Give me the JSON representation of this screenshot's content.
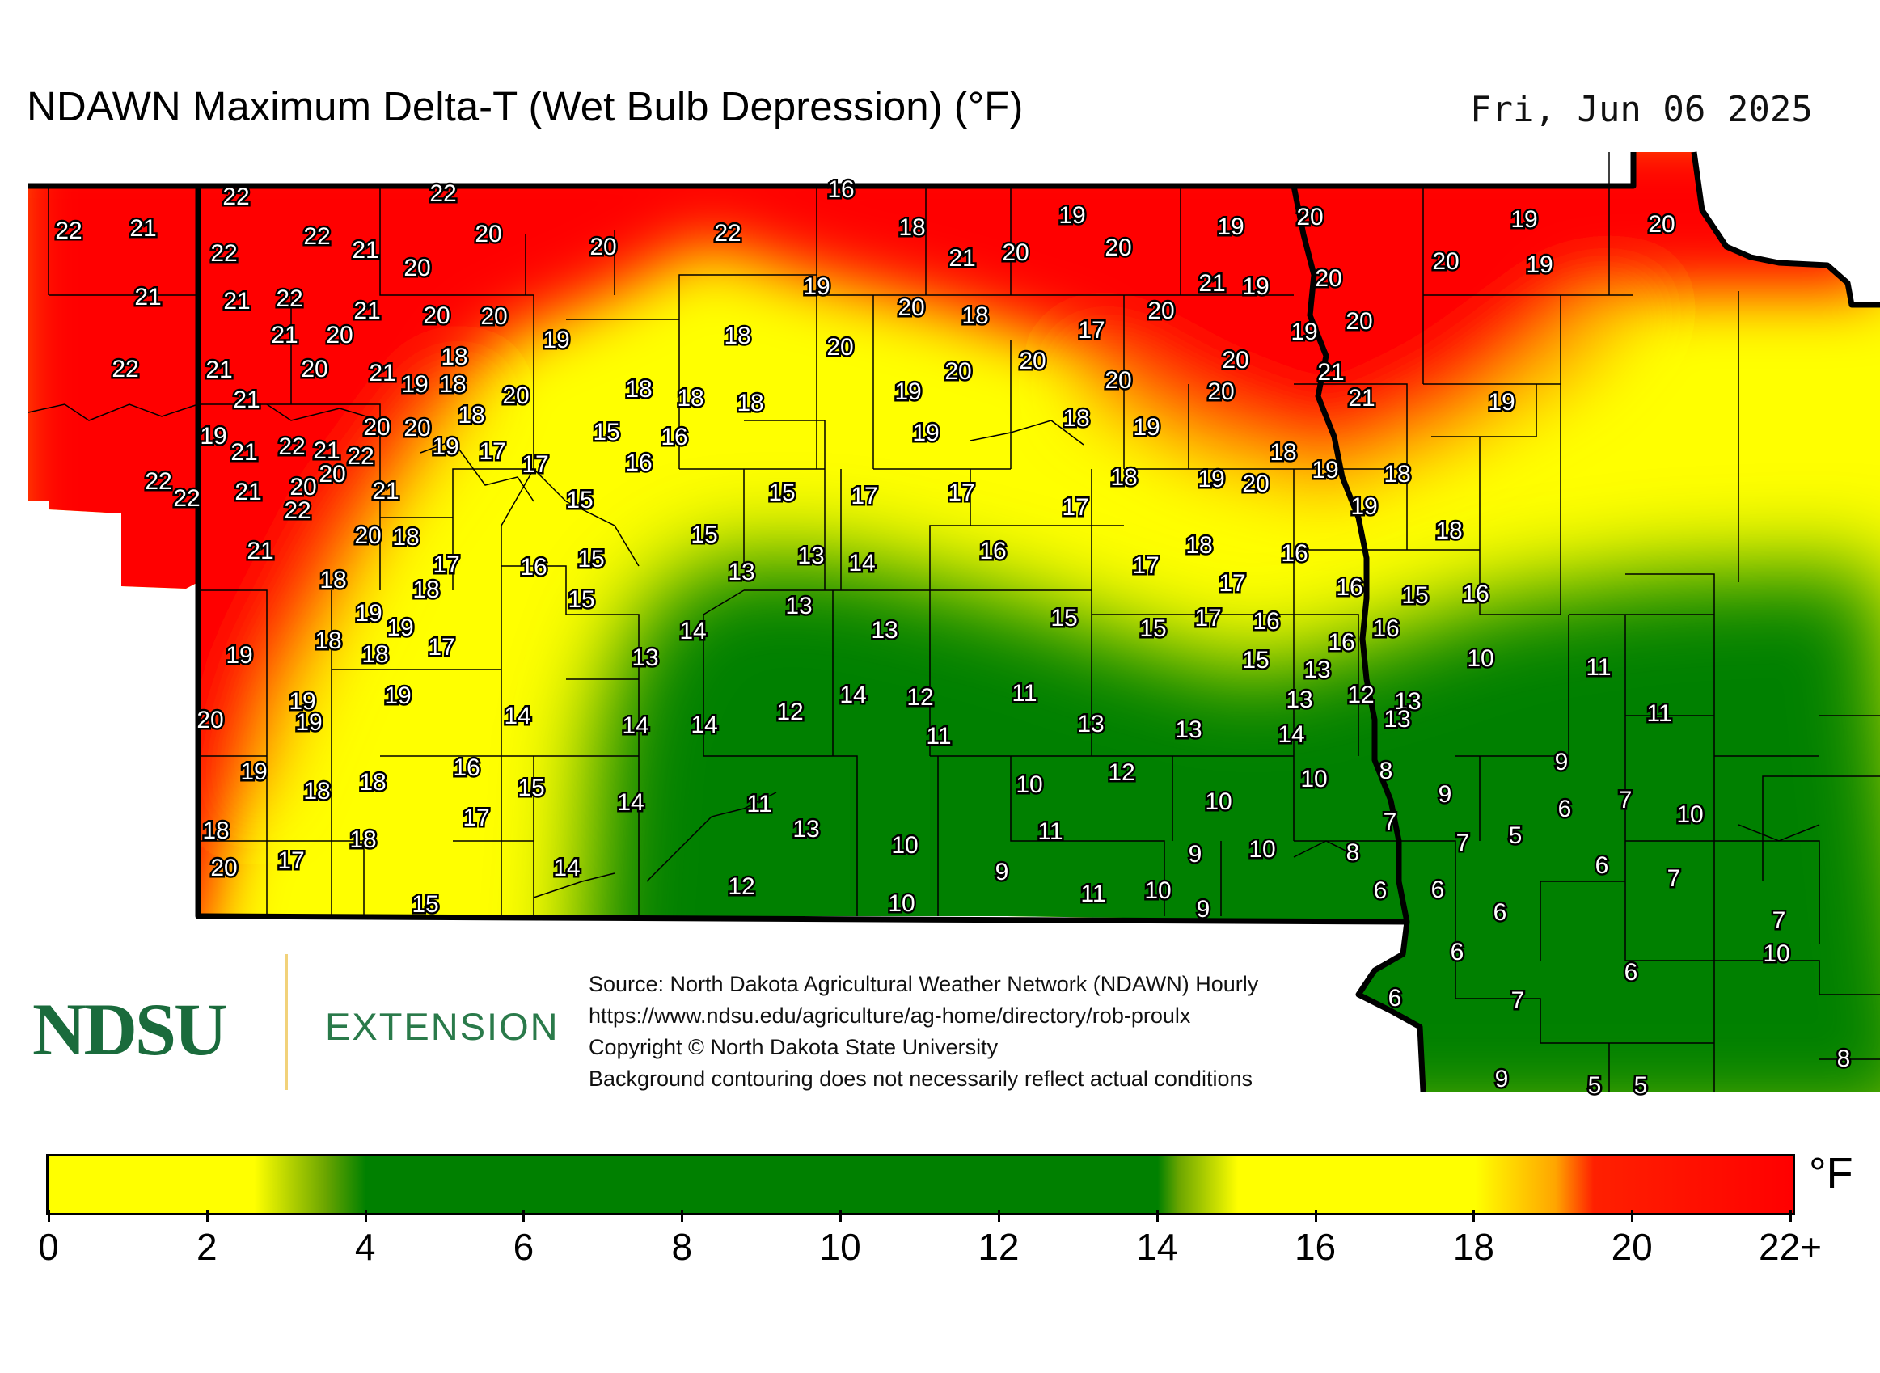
{
  "header": {
    "title": "NDAWN Maximum Delta-T (Wet Bulb Depression) (°F)",
    "date": "Fri, Jun 06 2025"
  },
  "logo": {
    "mark": "NDSU",
    "extension": "EXTENSION"
  },
  "source": {
    "lines": [
      "Source: North Dakota Agricultural Weather Network (NDAWN) Hourly",
      "https://www.ndsu.edu/agriculture/ag-home/directory/rob-proulx",
      "Copyright © North Dakota State University",
      "Background contouring does not necessarily reflect actual conditions"
    ]
  },
  "legend": {
    "unit": "°F",
    "ticks": [
      "0",
      "2",
      "4",
      "6",
      "8",
      "10",
      "12",
      "14",
      "16",
      "18",
      "20",
      "22+"
    ],
    "colors": {
      "yellow": "#ffff00",
      "green": "#008000",
      "orange": "#ffa500",
      "red": "#ff0000"
    }
  },
  "stations": [
    [
      "22",
      292,
      242
    ],
    [
      "22",
      548,
      238
    ],
    [
      "16",
      1040,
      233
    ],
    [
      "22",
      85,
      284
    ],
    [
      "21",
      177,
      281
    ],
    [
      "22",
      392,
      291
    ],
    [
      "20",
      604,
      288
    ],
    [
      "22",
      900,
      287
    ],
    [
      "18",
      1128,
      280
    ],
    [
      "19",
      1326,
      265
    ],
    [
      "19",
      1522,
      279
    ],
    [
      "20",
      1620,
      267
    ],
    [
      "19",
      1885,
      270
    ],
    [
      "20",
      2055,
      276
    ],
    [
      "22",
      277,
      312
    ],
    [
      "21",
      452,
      308
    ],
    [
      "20",
      516,
      330
    ],
    [
      "20",
      746,
      304
    ],
    [
      "21",
      1190,
      318
    ],
    [
      "20",
      1256,
      311
    ],
    [
      "20",
      1383,
      305
    ],
    [
      "20",
      1788,
      322
    ],
    [
      "19",
      1904,
      326
    ],
    [
      "21",
      183,
      366
    ],
    [
      "21",
      293,
      371
    ],
    [
      "22",
      358,
      368
    ],
    [
      "21",
      454,
      383
    ],
    [
      "20",
      540,
      389
    ],
    [
      "20",
      611,
      390
    ],
    [
      "19",
      1010,
      353
    ],
    [
      "20",
      1127,
      379
    ],
    [
      "18",
      1206,
      389
    ],
    [
      "20",
      1436,
      383
    ],
    [
      "21",
      1499,
      349
    ],
    [
      "19",
      1553,
      353
    ],
    [
      "20",
      1643,
      343
    ],
    [
      "20",
      1681,
      396
    ],
    [
      "21",
      352,
      413
    ],
    [
      "20",
      420,
      413
    ],
    [
      "19",
      688,
      419
    ],
    [
      "18",
      912,
      414
    ],
    [
      "20",
      1039,
      428
    ],
    [
      "17",
      1350,
      407
    ],
    [
      "19",
      1613,
      409
    ],
    [
      "22",
      155,
      455
    ],
    [
      "21",
      271,
      456
    ],
    [
      "20",
      389,
      455
    ],
    [
      "18",
      562,
      440
    ],
    [
      "21",
      473,
      460
    ],
    [
      "19",
      513,
      474
    ],
    [
      "18",
      560,
      474
    ],
    [
      "20",
      638,
      488
    ],
    [
      "18",
      790,
      480
    ],
    [
      "18",
      854,
      491
    ],
    [
      "18",
      928,
      497
    ],
    [
      "19",
      1123,
      483
    ],
    [
      "20",
      1185,
      458
    ],
    [
      "20",
      1277,
      445
    ],
    [
      "20",
      1383,
      469
    ],
    [
      "20",
      1528,
      444
    ],
    [
      "21",
      1646,
      459
    ],
    [
      "20",
      1510,
      483
    ],
    [
      "21",
      1684,
      491
    ],
    [
      "19",
      1857,
      496
    ],
    [
      "21",
      305,
      493
    ],
    [
      "20",
      466,
      527
    ],
    [
      "20",
      516,
      528
    ],
    [
      "18",
      583,
      512
    ],
    [
      "19",
      264,
      538
    ],
    [
      "21",
      302,
      558
    ],
    [
      "22",
      361,
      551
    ],
    [
      "21",
      404,
      556
    ],
    [
      "22",
      446,
      563
    ],
    [
      "19",
      551,
      551
    ],
    [
      "17",
      609,
      557
    ],
    [
      "17",
      662,
      573
    ],
    [
      "15",
      750,
      533
    ],
    [
      "16",
      834,
      539
    ],
    [
      "16",
      790,
      571
    ],
    [
      "19",
      1145,
      534
    ],
    [
      "18",
      1331,
      516
    ],
    [
      "19",
      1418,
      527
    ],
    [
      "18",
      1587,
      558
    ],
    [
      "19",
      1639,
      580
    ],
    [
      "22",
      196,
      594
    ],
    [
      "22",
      231,
      615
    ],
    [
      "21",
      307,
      607
    ],
    [
      "20",
      375,
      601
    ],
    [
      "20",
      411,
      585
    ],
    [
      "22",
      368,
      630
    ],
    [
      "21",
      477,
      606
    ],
    [
      "18",
      1390,
      589
    ],
    [
      "19",
      1498,
      591
    ],
    [
      "20",
      1553,
      597
    ],
    [
      "18",
      1728,
      585
    ],
    [
      "15",
      717,
      617
    ],
    [
      "15",
      967,
      608
    ],
    [
      "17",
      1069,
      612
    ],
    [
      "17",
      1189,
      608
    ],
    [
      "17",
      1330,
      626
    ],
    [
      "19",
      1687,
      625
    ],
    [
      "20",
      455,
      661
    ],
    [
      "18",
      502,
      663
    ],
    [
      "21",
      322,
      680
    ],
    [
      "15",
      871,
      660
    ],
    [
      "18",
      1792,
      655
    ],
    [
      "18",
      1483,
      673
    ],
    [
      "17",
      552,
      697
    ],
    [
      "16",
      660,
      700
    ],
    [
      "15",
      731,
      690
    ],
    [
      "13",
      917,
      706
    ],
    [
      "13",
      1003,
      686
    ],
    [
      "14",
      1066,
      695
    ],
    [
      "16",
      1228,
      680
    ],
    [
      "17",
      1417,
      698
    ],
    [
      "16",
      1601,
      683
    ],
    [
      "18",
      412,
      716
    ],
    [
      "18",
      527,
      728
    ],
    [
      "17",
      1524,
      720
    ],
    [
      "16",
      1669,
      725
    ],
    [
      "15",
      719,
      740
    ],
    [
      "13",
      988,
      748
    ],
    [
      "16",
      1825,
      733
    ],
    [
      "15",
      1750,
      735
    ],
    [
      "19",
      456,
      757
    ],
    [
      "19",
      495,
      775
    ],
    [
      "18",
      406,
      791
    ],
    [
      "18",
      464,
      808
    ],
    [
      "17",
      546,
      799
    ],
    [
      "14",
      857,
      779
    ],
    [
      "13",
      1094,
      778
    ],
    [
      "15",
      1316,
      763
    ],
    [
      "15",
      1426,
      776
    ],
    [
      "17",
      1494,
      763
    ],
    [
      "16",
      1566,
      767
    ],
    [
      "16",
      1659,
      793
    ],
    [
      "16",
      1714,
      776
    ],
    [
      "13",
      798,
      812
    ],
    [
      "15",
      1553,
      815
    ],
    [
      "13",
      1629,
      827
    ],
    [
      "19",
      296,
      809
    ],
    [
      "19",
      492,
      859
    ],
    [
      "19",
      374,
      866
    ],
    [
      "19",
      382,
      892
    ],
    [
      "20",
      260,
      889
    ],
    [
      "14",
      640,
      884
    ],
    [
      "14",
      786,
      896
    ],
    [
      "14",
      871,
      895
    ],
    [
      "12",
      977,
      879
    ],
    [
      "14",
      1055,
      858
    ],
    [
      "12",
      1138,
      861
    ],
    [
      "11",
      1267,
      856
    ],
    [
      "11",
      1161,
      909
    ],
    [
      "13",
      1349,
      894
    ],
    [
      "13",
      1470,
      901
    ],
    [
      "13",
      1607,
      864
    ],
    [
      "12",
      1683,
      858
    ],
    [
      "13",
      1741,
      866
    ],
    [
      "13",
      1728,
      888
    ],
    [
      "14",
      1597,
      907
    ],
    [
      "10",
      1831,
      813
    ],
    [
      "11",
      1977,
      824
    ],
    [
      "11",
      2052,
      881
    ],
    [
      "19",
      314,
      953
    ],
    [
      "18",
      392,
      977
    ],
    [
      "18",
      461,
      966
    ],
    [
      "16",
      577,
      948
    ],
    [
      "15",
      657,
      973
    ],
    [
      "14",
      780,
      991
    ],
    [
      "11",
      939,
      993
    ],
    [
      "10",
      1273,
      969
    ],
    [
      "12",
      1387,
      954
    ],
    [
      "10",
      1507,
      990
    ],
    [
      "10",
      1625,
      962
    ],
    [
      "8",
      1714,
      952
    ],
    [
      "9",
      1787,
      981
    ],
    [
      "9",
      1931,
      941
    ],
    [
      "6",
      1935,
      999
    ],
    [
      "7",
      2010,
      988
    ],
    [
      "10",
      2090,
      1006
    ],
    [
      "18",
      267,
      1026
    ],
    [
      "20",
      277,
      1072
    ],
    [
      "17",
      360,
      1063
    ],
    [
      "18",
      449,
      1037
    ],
    [
      "17",
      589,
      1010
    ],
    [
      "13",
      997,
      1024
    ],
    [
      "10",
      1119,
      1044
    ],
    [
      "11",
      1299,
      1027
    ],
    [
      "9",
      1239,
      1077
    ],
    [
      "9",
      1478,
      1055
    ],
    [
      "10",
      1561,
      1049
    ],
    [
      "8",
      1673,
      1053
    ],
    [
      "7",
      1719,
      1015
    ],
    [
      "7",
      1809,
      1041
    ],
    [
      "5",
      1874,
      1032
    ],
    [
      "6",
      1981,
      1069
    ],
    [
      "7",
      2070,
      1085
    ],
    [
      "14",
      701,
      1072
    ],
    [
      "15",
      526,
      1117
    ],
    [
      "12",
      917,
      1095
    ],
    [
      "10",
      1115,
      1116
    ],
    [
      "11",
      1352,
      1104
    ],
    [
      "10",
      1432,
      1100
    ],
    [
      "9",
      1488,
      1123
    ],
    [
      "6",
      1707,
      1100
    ],
    [
      "6",
      1778,
      1099
    ],
    [
      "6",
      1855,
      1127
    ],
    [
      "7",
      2200,
      1137
    ],
    [
      "10",
      2197,
      1178
    ],
    [
      "6",
      1802,
      1176
    ],
    [
      "6",
      2017,
      1201
    ],
    [
      "6",
      1725,
      1233
    ],
    [
      "7",
      1877,
      1236
    ],
    [
      "8",
      2280,
      1308
    ],
    [
      "9",
      1857,
      1333
    ],
    [
      "5",
      1972,
      1341
    ],
    [
      "5",
      2029,
      1341
    ]
  ]
}
